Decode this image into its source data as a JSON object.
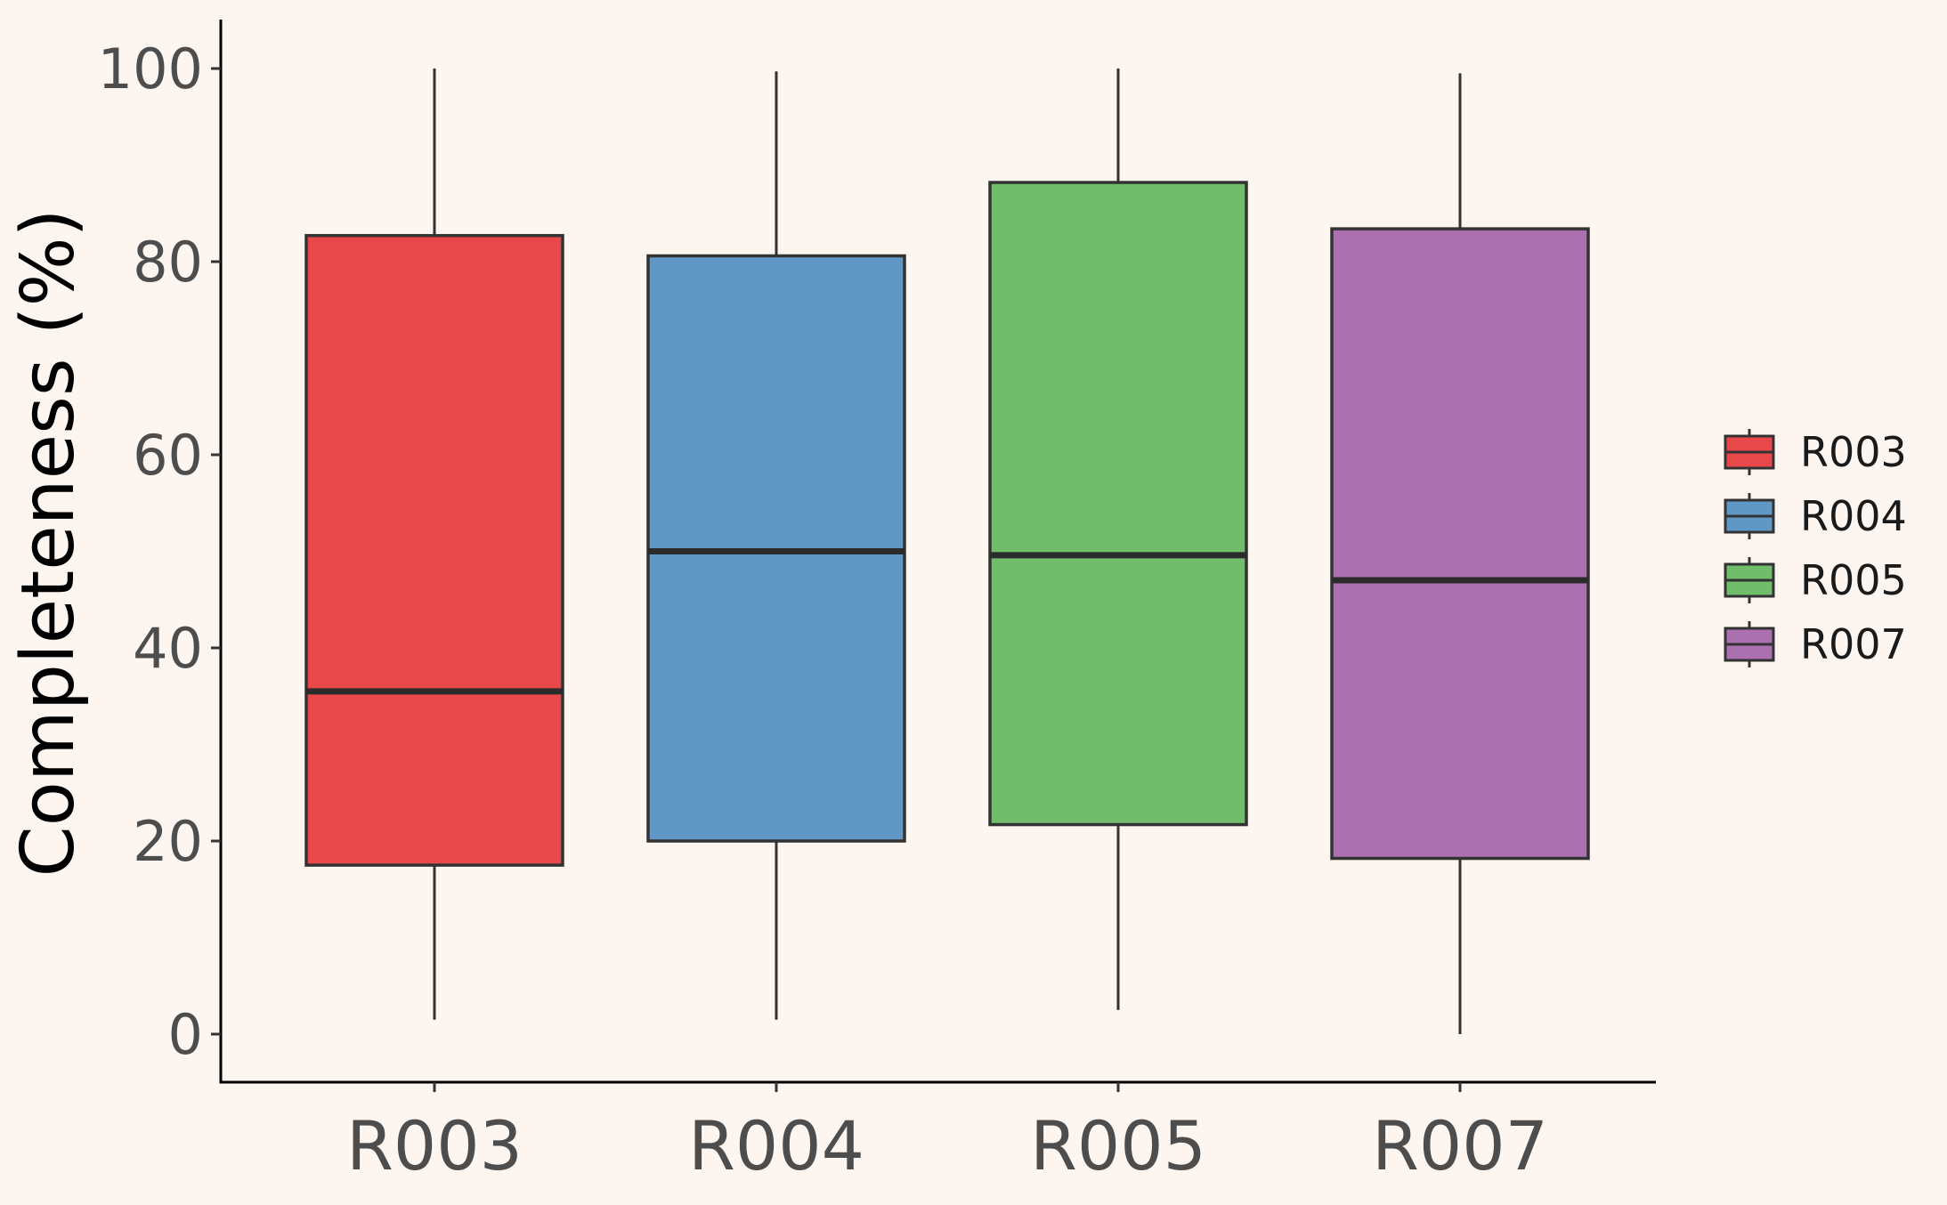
{
  "chart_data": {
    "type": "boxplot",
    "title": "",
    "xlabel": "",
    "ylabel": "Completeness (%)",
    "ylim": [
      -5,
      105
    ],
    "yticks": [
      "0",
      "20",
      "40",
      "60",
      "80",
      "100"
    ],
    "categories": [
      "R003",
      "R004",
      "R005",
      "R007"
    ],
    "boxes": [
      {
        "name": "R003",
        "min": 1.5,
        "q1": 17.5,
        "median": 35.5,
        "q3": 82.7,
        "max": 100,
        "color": "#e8484a"
      },
      {
        "name": "R004",
        "min": 1.5,
        "q1": 20.0,
        "median": 50.0,
        "q3": 80.6,
        "max": 99.7,
        "color": "#6197c4"
      },
      {
        "name": "R005",
        "min": 2.5,
        "q1": 21.7,
        "median": 49.6,
        "q3": 88.2,
        "max": 100,
        "color": "#71bd6b"
      },
      {
        "name": "R007",
        "min": 0.0,
        "q1": 18.2,
        "median": 47.0,
        "q3": 83.4,
        "max": 99.5,
        "color": "#ab70b0"
      }
    ],
    "legend": {
      "position": "right",
      "items": [
        {
          "label": "R003",
          "color": "#e8484a"
        },
        {
          "label": "R004",
          "color": "#6197c4"
        },
        {
          "label": "R005",
          "color": "#71bd6b"
        },
        {
          "label": "R007",
          "color": "#ab70b0"
        }
      ]
    },
    "grid": false,
    "background": "#fdf5ef"
  }
}
